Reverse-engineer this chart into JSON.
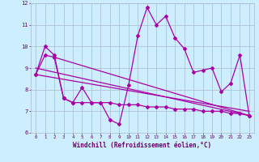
{
  "xlabel": "Windchill (Refroidissement éolien,°C)",
  "hours": [
    0,
    1,
    2,
    3,
    4,
    5,
    6,
    7,
    8,
    9,
    10,
    11,
    12,
    13,
    14,
    15,
    16,
    17,
    18,
    19,
    20,
    21,
    22,
    23
  ],
  "series1": [
    8.7,
    10.0,
    9.6,
    7.6,
    7.4,
    8.1,
    7.4,
    7.4,
    6.6,
    6.4,
    8.2,
    10.5,
    11.8,
    11.0,
    11.4,
    10.4,
    9.9,
    8.8,
    8.9,
    9.0,
    7.9,
    8.3,
    9.6,
    6.8
  ],
  "series2": [
    8.7,
    9.6,
    9.5,
    7.6,
    7.4,
    7.4,
    7.4,
    7.4,
    7.4,
    7.3,
    7.3,
    7.3,
    7.2,
    7.2,
    7.2,
    7.1,
    7.1,
    7.1,
    7.0,
    7.0,
    7.0,
    6.9,
    6.9,
    6.8
  ],
  "series3": [
    8.7,
    9.5,
    9.4,
    9.3,
    9.2,
    9.1,
    9.0,
    8.9,
    8.8,
    8.7,
    8.6,
    8.5,
    8.4,
    8.3,
    8.2,
    8.1,
    8.0,
    7.9,
    7.8,
    7.7,
    7.6,
    7.5,
    7.4,
    7.0
  ],
  "series4": [
    9.0,
    9.0,
    8.9,
    8.8,
    8.7,
    8.6,
    8.6,
    8.5,
    8.4,
    8.3,
    8.3,
    8.2,
    8.1,
    8.0,
    8.0,
    7.9,
    7.8,
    7.7,
    7.7,
    7.6,
    7.5,
    7.4,
    7.4,
    6.8
  ],
  "ylim": [
    6,
    12
  ],
  "xlim": [
    0,
    23
  ],
  "color": "#aa00aa",
  "bg_color": "#cceeff",
  "grid_color": "#aabbcc",
  "label_color": "#660066"
}
